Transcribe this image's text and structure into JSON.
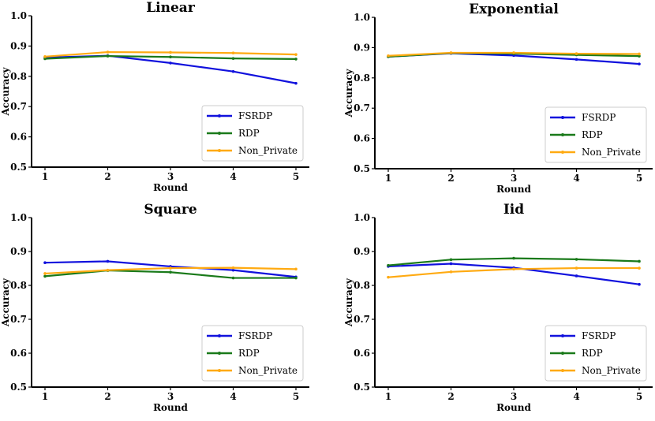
{
  "chart_data": [
    {
      "type": "line",
      "title": "Linear",
      "xlabel": "Round",
      "ylabel": "Accuracy",
      "x": [
        1,
        2,
        3,
        4,
        5
      ],
      "xticks": [
        "1",
        "2",
        "3",
        "4",
        "5"
      ],
      "ylim": [
        0.5,
        1.0
      ],
      "yticks": [
        "0.5",
        "0.6",
        "0.7",
        "0.8",
        "0.9",
        "1.0"
      ],
      "legend_position": "lower-right",
      "series": [
        {
          "name": "FSRDP",
          "color": "#1111dd",
          "values": [
            0.862,
            0.868,
            0.844,
            0.816,
            0.777
          ]
        },
        {
          "name": "RDP",
          "color": "#1a7a1a",
          "values": [
            0.858,
            0.867,
            0.864,
            0.859,
            0.857
          ]
        },
        {
          "name": "Non_Private",
          "color": "#ffaa11",
          "values": [
            0.865,
            0.88,
            0.879,
            0.877,
            0.872
          ]
        }
      ]
    },
    {
      "type": "line",
      "title": "Exponential",
      "xlabel": "Round",
      "ylabel": "Accuracy",
      "x": [
        1,
        2,
        3,
        4,
        5
      ],
      "xticks": [
        "1",
        "2",
        "3",
        "4",
        "5"
      ],
      "ylim": [
        0.5,
        1.0
      ],
      "yticks": [
        "0.5",
        "0.6",
        "0.7",
        "0.8",
        "0.9",
        "1.0"
      ],
      "legend_position": "lower-right",
      "series": [
        {
          "name": "FSRDP",
          "color": "#1111dd",
          "values": [
            0.87,
            0.881,
            0.874,
            0.861,
            0.846
          ]
        },
        {
          "name": "RDP",
          "color": "#1a7a1a",
          "values": [
            0.87,
            0.882,
            0.88,
            0.876,
            0.872
          ]
        },
        {
          "name": "Non_Private",
          "color": "#ffaa11",
          "values": [
            0.873,
            0.883,
            0.883,
            0.88,
            0.879
          ]
        }
      ]
    },
    {
      "type": "line",
      "title": "Square",
      "xlabel": "Round",
      "ylabel": "Accuracy",
      "x": [
        1,
        2,
        3,
        4,
        5
      ],
      "xticks": [
        "1",
        "2",
        "3",
        "4",
        "5"
      ],
      "ylim": [
        0.5,
        1.0
      ],
      "yticks": [
        "0.5",
        "0.6",
        "0.7",
        "0.8",
        "0.9",
        "1.0"
      ],
      "legend_position": "lower-right",
      "series": [
        {
          "name": "FSRDP",
          "color": "#1111dd",
          "values": [
            0.867,
            0.871,
            0.856,
            0.845,
            0.825
          ]
        },
        {
          "name": "RDP",
          "color": "#1a7a1a",
          "values": [
            0.827,
            0.844,
            0.839,
            0.822,
            0.822
          ]
        },
        {
          "name": "Non_Private",
          "color": "#ffaa11",
          "values": [
            0.835,
            0.845,
            0.851,
            0.852,
            0.848
          ]
        }
      ]
    },
    {
      "type": "line",
      "title": "Iid",
      "xlabel": "Round",
      "ylabel": "Accuracy",
      "x": [
        1,
        2,
        3,
        4,
        5
      ],
      "xticks": [
        "1",
        "2",
        "3",
        "4",
        "5"
      ],
      "ylim": [
        0.5,
        1.0
      ],
      "yticks": [
        "0.5",
        "0.6",
        "0.7",
        "0.8",
        "0.9",
        "1.0"
      ],
      "legend_position": "lower-right",
      "series": [
        {
          "name": "FSRDP",
          "color": "#1111dd",
          "values": [
            0.856,
            0.864,
            0.852,
            0.828,
            0.803
          ]
        },
        {
          "name": "RDP",
          "color": "#1a7a1a",
          "values": [
            0.859,
            0.876,
            0.88,
            0.877,
            0.871
          ]
        },
        {
          "name": "Non_Private",
          "color": "#ffaa11",
          "values": [
            0.824,
            0.84,
            0.848,
            0.851,
            0.851
          ]
        }
      ]
    }
  ]
}
